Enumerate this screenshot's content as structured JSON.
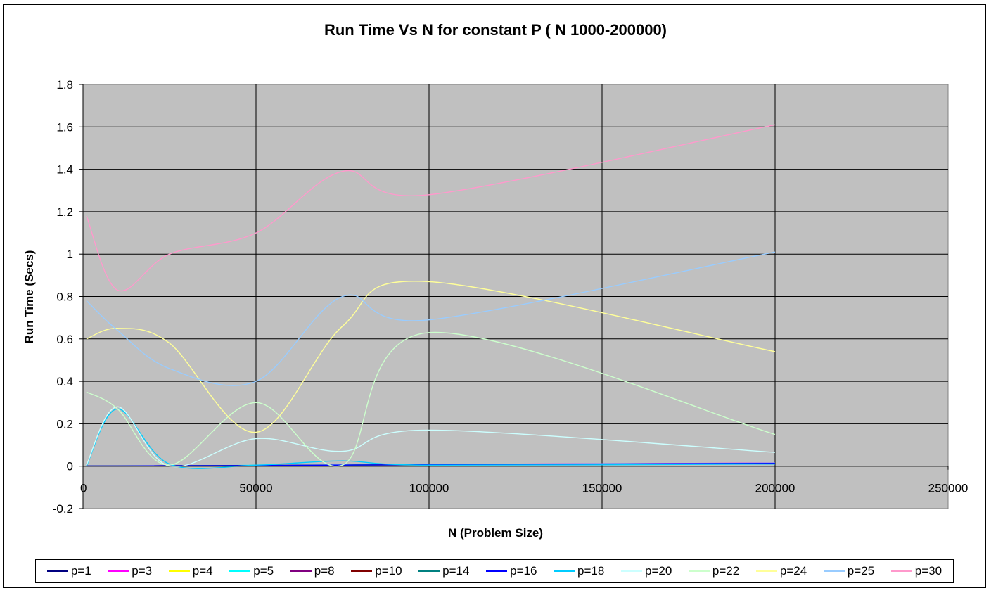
{
  "chart_data": {
    "type": "line",
    "title": "Run Time Vs N for constant P ( N 1000-200000)",
    "xlabel": "N (Problem Size)",
    "ylabel": "Run Time (Secs)",
    "xlim": [
      0,
      250000
    ],
    "ylim": [
      -0.2,
      1.8
    ],
    "xticks": [
      0,
      50000,
      100000,
      150000,
      200000,
      250000
    ],
    "yticks": [
      -0.2,
      0,
      0.2,
      0.4,
      0.6,
      0.8,
      1,
      1.2,
      1.4,
      1.6,
      1.8
    ],
    "xtick_labels": [
      "0",
      "50000",
      "100000",
      "150000",
      "200000",
      "250000"
    ],
    "ytick_labels": [
      "-0.2",
      "0",
      "0.2",
      "0.4",
      "0.6",
      "0.8",
      "1",
      "1.2",
      "1.4",
      "1.6",
      "1.8"
    ],
    "grid": true,
    "legend_position": "bottom",
    "plot_background": "#c0c0c0",
    "x": [
      1000,
      10000,
      25000,
      50000,
      75000,
      100000,
      200000
    ],
    "series": [
      {
        "name": "p=1",
        "color": "#000080",
        "values": [
          0.001,
          0.001,
          0.002,
          0.003,
          0.005,
          0.007,
          0.013
        ]
      },
      {
        "name": "p=3",
        "color": "#ff00ff",
        "values": [
          0.001,
          0.001,
          0.002,
          0.003,
          0.006,
          0.008,
          0.015
        ]
      },
      {
        "name": "p=4",
        "color": "#ffff00",
        "values": [
          0.001,
          0.001,
          0.002,
          0.003,
          0.005,
          0.007,
          0.012
        ]
      },
      {
        "name": "p=5",
        "color": "#00ffff",
        "values": [
          0.001,
          0.001,
          0.002,
          0.004,
          0.006,
          0.008,
          0.014
        ]
      },
      {
        "name": "p=8",
        "color": "#800080",
        "values": [
          0.001,
          0.001,
          0.002,
          0.003,
          0.005,
          0.007,
          0.012
        ]
      },
      {
        "name": "p=10",
        "color": "#800000",
        "values": [
          0.001,
          0.001,
          0.002,
          0.003,
          0.005,
          0.006,
          0.011
        ]
      },
      {
        "name": "p=14",
        "color": "#008080",
        "values": [
          0.001,
          0.001,
          0.002,
          0.003,
          0.005,
          0.006,
          0.011
        ]
      },
      {
        "name": "p=16",
        "color": "#0000ff",
        "values": [
          0.001,
          0.001,
          0.002,
          0.003,
          0.005,
          0.007,
          0.013
        ]
      },
      {
        "name": "p=18",
        "color": "#00ccff",
        "values": [
          0.001,
          0.27,
          0.01,
          0.005,
          0.025,
          0.005,
          0.01
        ]
      },
      {
        "name": "p=20",
        "color": "#ccffff",
        "values": [
          0.005,
          0.28,
          0.0,
          0.13,
          0.07,
          0.17,
          0.065
        ]
      },
      {
        "name": "p=22",
        "color": "#ccffcc",
        "values": [
          0.35,
          0.27,
          0.005,
          0.3,
          0.005,
          0.63,
          0.15
        ]
      },
      {
        "name": "p=24",
        "color": "#ffff99",
        "values": [
          0.6,
          0.65,
          0.58,
          0.16,
          0.66,
          0.87,
          0.54
        ]
      },
      {
        "name": "p=25",
        "color": "#99ccff",
        "values": [
          0.78,
          0.64,
          0.46,
          0.4,
          0.8,
          0.69,
          1.01
        ]
      },
      {
        "name": "p=30",
        "color": "#ff99cc",
        "values": [
          1.18,
          0.83,
          1.0,
          1.1,
          1.39,
          1.28,
          1.61
        ]
      }
    ]
  }
}
